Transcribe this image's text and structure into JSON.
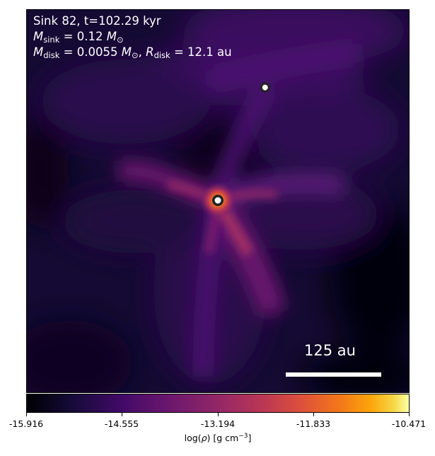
{
  "annotation": {
    "title": "Sink 82, t=102.29 kyr",
    "msink_symbol": "M",
    "msink_sub": "sink",
    "msink_value": " = 0.12 ",
    "msun_symbol": "M",
    "msun_sub": "⊙",
    "mdisk_symbol": "M",
    "mdisk_sub": "disk",
    "mdisk_value": " = 0.0055 ",
    "mdisk_msun_symbol": "M",
    "mdisk_msun_sub": "⊙",
    "separator": ", ",
    "rdisk_symbol": "R",
    "rdisk_sub": "disk",
    "rdisk_value": " = 12.1 au"
  },
  "scale_bar": {
    "label": "125 au"
  },
  "colorbar": {
    "colormap": "inferno",
    "ticks": [
      "-15.916",
      "-14.555",
      "-13.194",
      "-11.833",
      "-10.471"
    ],
    "label_prefix": "log(",
    "label_symbol": "ρ",
    "label_mid": ") [g cm",
    "label_exp": "−3",
    "label_suffix": "]"
  },
  "sinks": [
    {
      "name": "Sink 82",
      "role": "primary"
    },
    {
      "name": "companion",
      "role": "secondary"
    }
  ],
  "colors": {
    "background_dark": "#000004",
    "filament": "#5a1a78",
    "hot_core": "#f37819",
    "text": "#ffffff"
  }
}
